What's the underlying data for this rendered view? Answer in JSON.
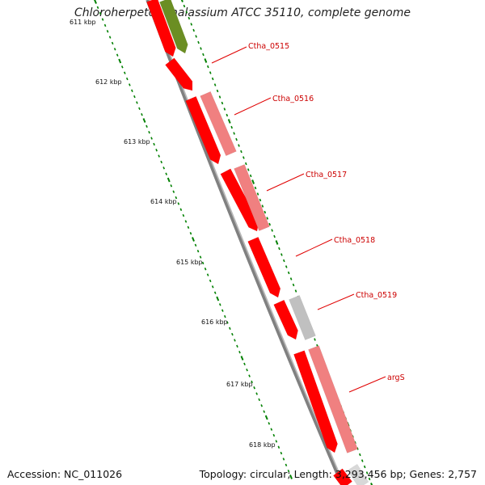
{
  "title": "Chloroherpeton thalassium ATCC 35110, complete genome",
  "footer": {
    "accession": "Accession: NC_011026",
    "summary": "Topology: circular; Length: 3,293,456 bp; Genes: 2,757"
  },
  "colors": {
    "backbone": "#808080",
    "feature_red": "#ff0000",
    "feature_pink": "#f08080",
    "feature_green": "#6b8e23",
    "feature_gray": "#c0c0c0",
    "tick": "#008000",
    "label_line": "#e00000",
    "label_text": "#cc0000"
  },
  "ticks": [
    "611 kbp",
    "612 kbp",
    "613 kbp",
    "614 kbp",
    "615 kbp",
    "616 kbp",
    "617 kbp",
    "618 kbp"
  ],
  "gene_labels": [
    "Ctha_0515",
    "Ctha_0516",
    "Ctha_0517",
    "Ctha_0518",
    "Ctha_0519",
    "argS"
  ]
}
